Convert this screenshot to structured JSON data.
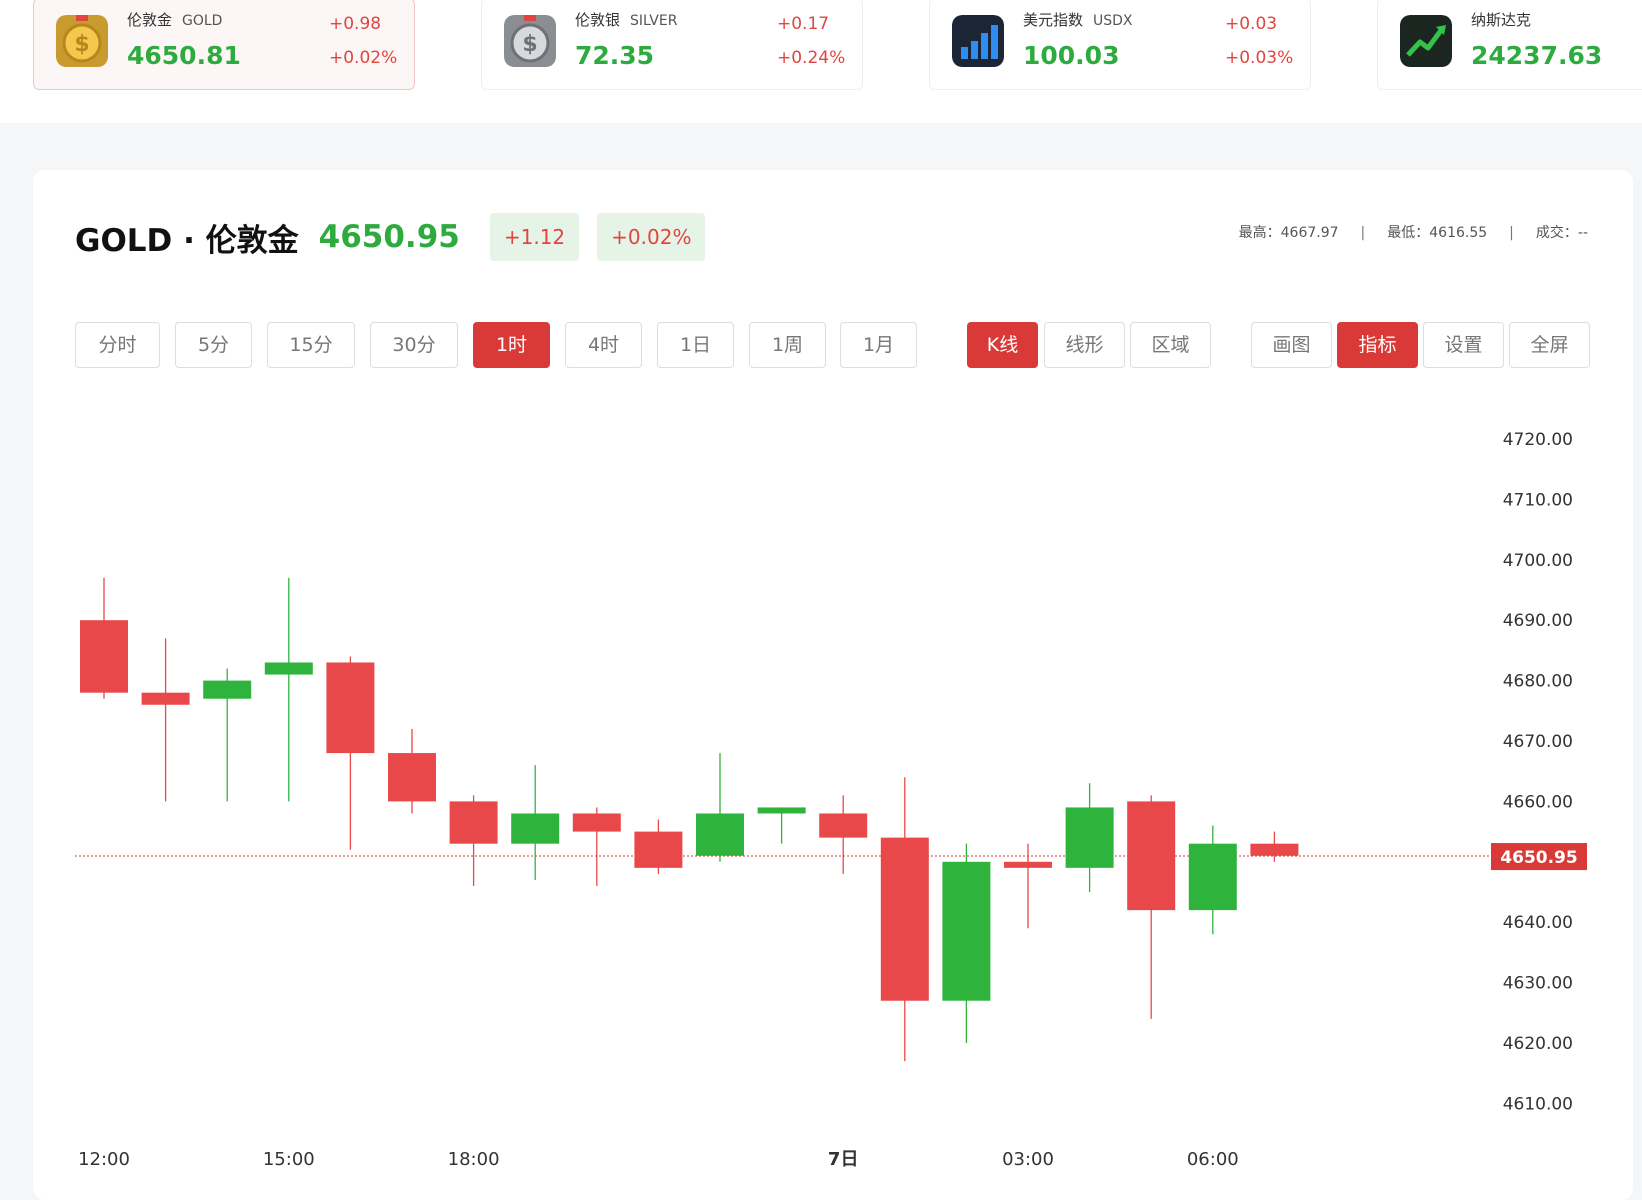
{
  "tickers": [
    {
      "name": "伦敦金",
      "code": "GOLD",
      "price": "4650.81",
      "change": "+0.98",
      "change_pct": "+0.02%",
      "icon": "gold-coin-icon",
      "active": true
    },
    {
      "name": "伦敦银",
      "code": "SILVER",
      "price": "72.35",
      "change": "+0.17",
      "change_pct": "+0.24%",
      "icon": "silver-coin-icon",
      "active": false
    },
    {
      "name": "美元指数",
      "code": "USDX",
      "price": "100.03",
      "change": "+0.03",
      "change_pct": "+0.03%",
      "icon": "bar-chart-icon",
      "active": false
    },
    {
      "name": "纳斯达克",
      "code": "",
      "price": "24237.63",
      "change": "",
      "change_pct": "",
      "icon": "trend-up-icon",
      "active": false
    }
  ],
  "header": {
    "title": "GOLD · 伦敦金",
    "price": "4650.95",
    "change": "+1.12",
    "change_pct": "+0.02%",
    "high_label": "最高：",
    "high": "4667.97",
    "low_label": "最低：",
    "low": "4616.55",
    "volume_label": "成交：",
    "volume": "--",
    "sep": "|"
  },
  "timeframes": [
    {
      "label": "分时",
      "active": false
    },
    {
      "label": "5分",
      "active": false
    },
    {
      "label": "15分",
      "active": false
    },
    {
      "label": "30分",
      "active": false
    },
    {
      "label": "1时",
      "active": true
    },
    {
      "label": "4时",
      "active": false
    },
    {
      "label": "1日",
      "active": false
    },
    {
      "label": "1周",
      "active": false
    },
    {
      "label": "1月",
      "active": false
    }
  ],
  "chart_types": [
    {
      "label": "K线",
      "active": true
    },
    {
      "label": "线形",
      "active": false
    },
    {
      "label": "区域",
      "active": false
    }
  ],
  "tools": [
    {
      "label": "画图",
      "active": false
    },
    {
      "label": "指标",
      "active": true
    },
    {
      "label": "设置",
      "active": false
    },
    {
      "label": "全屏",
      "active": false
    }
  ],
  "colors": {
    "up": "#2eb43c",
    "down": "#e8484a",
    "accent": "#d93a37"
  },
  "chart_data": {
    "type": "candlestick",
    "y_ticks": [
      "4720.00",
      "4710.00",
      "4700.00",
      "4690.00",
      "4680.00",
      "4670.00",
      "4660.00",
      "4650.00",
      "4640.00",
      "4630.00",
      "4620.00",
      "4610.00"
    ],
    "y_range": [
      4605,
      4720
    ],
    "x_labels": [
      {
        "label": "12:00",
        "index": 0,
        "bold": false
      },
      {
        "label": "15:00",
        "index": 3,
        "bold": false
      },
      {
        "label": "18:00",
        "index": 6,
        "bold": false
      },
      {
        "label": "7日",
        "index": 12,
        "bold": true
      },
      {
        "label": "03:00",
        "index": 15,
        "bold": false
      },
      {
        "label": "06:00",
        "index": 18,
        "bold": false
      }
    ],
    "current_price": 4650.95,
    "current_price_label": "4650.95",
    "candles": [
      {
        "open": 4690.0,
        "close": 4678.0,
        "high": 4697.0,
        "low": 4677.0
      },
      {
        "open": 4678.0,
        "close": 4676.0,
        "high": 4687.0,
        "low": 4660.0
      },
      {
        "open": 4677.0,
        "close": 4680.0,
        "high": 4682.0,
        "low": 4660.0
      },
      {
        "open": 4681.0,
        "close": 4683.0,
        "high": 4697.0,
        "low": 4660.0
      },
      {
        "open": 4683.0,
        "close": 4668.0,
        "high": 4684.0,
        "low": 4652.0
      },
      {
        "open": 4668.0,
        "close": 4660.0,
        "high": 4672.0,
        "low": 4658.0
      },
      {
        "open": 4660.0,
        "close": 4653.0,
        "high": 4661.0,
        "low": 4646.0
      },
      {
        "open": 4653.0,
        "close": 4658.0,
        "high": 4666.0,
        "low": 4647.0
      },
      {
        "open": 4658.0,
        "close": 4655.0,
        "high": 4659.0,
        "low": 4646.0
      },
      {
        "open": 4655.0,
        "close": 4649.0,
        "high": 4657.0,
        "low": 4648.0
      },
      {
        "open": 4651.0,
        "close": 4658.0,
        "high": 4668.0,
        "low": 4650.0
      },
      {
        "open": 4658.0,
        "close": 4659.0,
        "high": 4659.0,
        "low": 4653.0
      },
      {
        "open": 4658.0,
        "close": 4654.0,
        "high": 4661.0,
        "low": 4648.0
      },
      {
        "open": 4654.0,
        "close": 4627.0,
        "high": 4664.0,
        "low": 4617.0
      },
      {
        "open": 4627.0,
        "close": 4650.0,
        "high": 4653.0,
        "low": 4620.0
      },
      {
        "open": 4650.0,
        "close": 4649.0,
        "high": 4653.0,
        "low": 4639.0
      },
      {
        "open": 4649.0,
        "close": 4659.0,
        "high": 4663.0,
        "low": 4645.0
      },
      {
        "open": 4660.0,
        "close": 4642.0,
        "high": 4661.0,
        "low": 4624.0
      },
      {
        "open": 4642.0,
        "close": 4653.0,
        "high": 4656.0,
        "low": 4638.0
      },
      {
        "open": 4653.0,
        "close": 4651.0,
        "high": 4655.0,
        "low": 4650.0
      }
    ]
  }
}
